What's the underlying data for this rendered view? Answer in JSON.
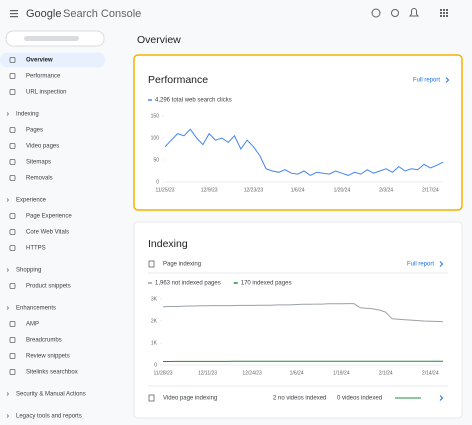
{
  "header": {
    "logo": "Google",
    "product": "Search Console"
  },
  "sidebar": {
    "selected_index": 0,
    "top": [
      "Overview",
      "Performance",
      "URL inspection"
    ],
    "sections": [
      {
        "heading": "Indexing",
        "items": [
          "Pages",
          "Video pages",
          "Sitemaps",
          "Removals"
        ]
      },
      {
        "heading": "Experience",
        "items": [
          "Page Experience",
          "Core Web Vitals",
          "HTTPS"
        ]
      },
      {
        "heading": "Shopping",
        "items": [
          "Product snippets"
        ]
      },
      {
        "heading": "Enhancements",
        "items": [
          "AMP",
          "Breadcrumbs",
          "Review snippets",
          "Sitelinks searchbox"
        ]
      },
      {
        "heading": "Security & Manual Actions",
        "items": []
      },
      {
        "heading": "Legacy tools and reports",
        "items": []
      }
    ]
  },
  "main": {
    "title": "Overview",
    "performance": {
      "title": "Performance",
      "link": "Full report",
      "chart": {
        "type": "line",
        "categories": [
          "11/25/23",
          null,
          null,
          null,
          null,
          null,
          null,
          "12/9/23",
          null,
          null,
          null,
          null,
          null,
          null,
          "12/23/23",
          null,
          null,
          null,
          null,
          null,
          null,
          "1/6/24",
          null,
          null,
          null,
          null,
          null,
          null,
          "1/20/24",
          null,
          null,
          null,
          null,
          null,
          null,
          "2/3/24",
          null,
          null,
          null,
          null,
          null,
          null,
          "2/17/24",
          null,
          null
        ],
        "series": [
          {
            "name": "4,296 total web search clicks",
            "color": "#4285f4",
            "values": [
              80,
              95,
              110,
              105,
              120,
              100,
              85,
              110,
              95,
              100,
              90,
              105,
              75,
              95,
              80,
              60,
              30,
              25,
              22,
              28,
              20,
              18,
              25,
              15,
              22,
              20,
              18,
              25,
              20,
              15,
              22,
              18,
              28,
              20,
              25,
              30,
              22,
              35,
              25,
              30,
              28,
              40,
              32,
              38,
              45
            ]
          }
        ],
        "ylim": [
          0,
          150
        ],
        "yticks": [
          0,
          50,
          100,
          150
        ]
      }
    },
    "indexing": {
      "title": "Indexing",
      "page_indexing": {
        "label": "Page indexing",
        "link": "Full report"
      },
      "chart": {
        "type": "line",
        "categories": [
          "11/28/23",
          null,
          null,
          null,
          null,
          null,
          null,
          "12/11/23",
          null,
          null,
          null,
          null,
          null,
          null,
          "12/24/23",
          null,
          null,
          null,
          null,
          null,
          null,
          "1/6/24",
          null,
          null,
          null,
          null,
          null,
          null,
          "1/19/24",
          null,
          null,
          null,
          null,
          null,
          null,
          "2/1/24",
          null,
          null,
          null,
          null,
          null,
          null,
          "2/14/24",
          null,
          null
        ],
        "series": [
          {
            "name": "1,963 not indexed pages",
            "color": "#9aa0a6",
            "values": [
              2650,
              2660,
              2660,
              2670,
              2680,
              2680,
              2690,
              2690,
              2700,
              2700,
              2700,
              2700,
              2710,
              2710,
              2710,
              2720,
              2720,
              2720,
              2730,
              2730,
              2730,
              2750,
              2760,
              2760,
              2770,
              2770,
              2780,
              2780,
              2780,
              2790,
              2790,
              2600,
              2580,
              2550,
              2500,
              2400,
              2100,
              2080,
              2060,
              2040,
              2020,
              2000,
              1990,
              1980,
              1963
            ]
          },
          {
            "name": "170 indexed pages",
            "color": "#1e8e3e",
            "values": [
              160,
              160,
              162,
              162,
              163,
              163,
              164,
              164,
              165,
              165,
              165,
              166,
              166,
              166,
              167,
              167,
              167,
              168,
              168,
              168,
              168,
              168,
              169,
              169,
              169,
              169,
              169,
              170,
              170,
              170,
              170,
              170,
              170,
              170,
              170,
              170,
              170,
              170,
              170,
              170,
              170,
              170,
              170,
              170,
              170
            ]
          }
        ],
        "ylim": [
          0,
          3000
        ],
        "yticks": [
          0,
          {
            "value": 1000,
            "label": "1K"
          },
          {
            "value": 2000,
            "label": "2K"
          },
          {
            "value": 3000,
            "label": "3K"
          }
        ]
      },
      "video": {
        "label": "Video page indexing",
        "stats": [
          "2 no videos indexed",
          "0 videos indexed"
        ]
      }
    }
  }
}
